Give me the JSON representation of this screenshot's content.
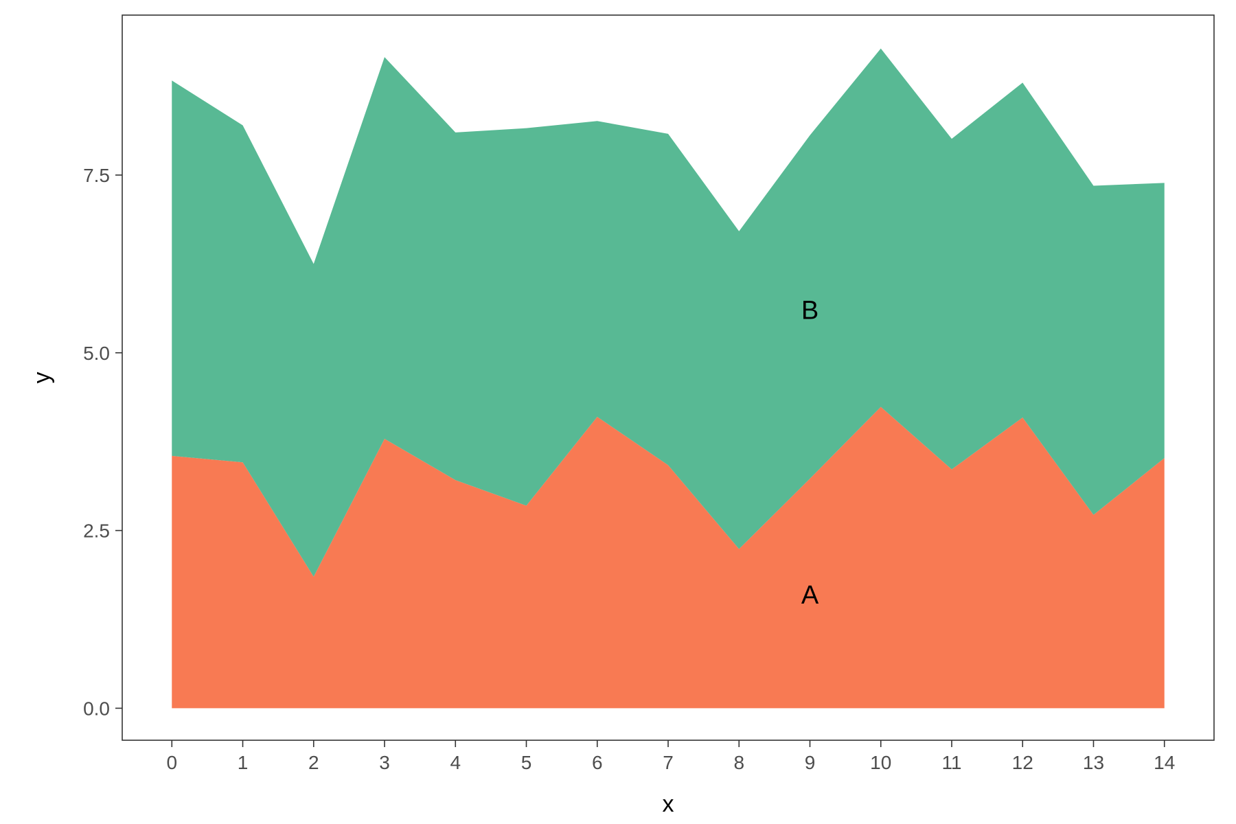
{
  "chart_data": {
    "type": "area",
    "stacked": true,
    "title": "",
    "xlabel": "x",
    "ylabel": "y",
    "x": [
      0,
      1,
      2,
      3,
      4,
      5,
      6,
      7,
      8,
      9,
      10,
      11,
      12,
      13,
      14
    ],
    "xlim": [
      -0.7,
      14.7
    ],
    "ylim": [
      -0.45,
      9.75
    ],
    "x_ticks": [
      "0",
      "1",
      "2",
      "3",
      "4",
      "5",
      "6",
      "7",
      "8",
      "9",
      "10",
      "11",
      "12",
      "13",
      "14"
    ],
    "x_tick_values": [
      0,
      1,
      2,
      3,
      4,
      5,
      6,
      7,
      8,
      9,
      10,
      11,
      12,
      13,
      14
    ],
    "y_ticks": [
      "0.0",
      "2.5",
      "5.0",
      "7.5"
    ],
    "y_tick_values": [
      0,
      2.5,
      5.0,
      7.5
    ],
    "grid": false,
    "legend": "none",
    "series": [
      {
        "name": "A",
        "color": "#F87A53",
        "values": [
          3.55,
          3.46,
          1.85,
          3.79,
          3.21,
          2.85,
          4.1,
          3.42,
          2.24,
          3.23,
          4.24,
          3.36,
          4.09,
          2.72,
          3.52
        ]
      },
      {
        "name": "B",
        "color": "#58B994",
        "values": [
          5.28,
          4.74,
          4.4,
          5.37,
          4.89,
          5.31,
          4.16,
          4.66,
          4.47,
          4.83,
          5.04,
          4.65,
          4.71,
          4.63,
          3.87
        ]
      }
    ],
    "annotations": [
      {
        "text": "A",
        "x": 9,
        "y": 1.6
      },
      {
        "text": "B",
        "x": 9,
        "y": 5.6
      }
    ]
  }
}
